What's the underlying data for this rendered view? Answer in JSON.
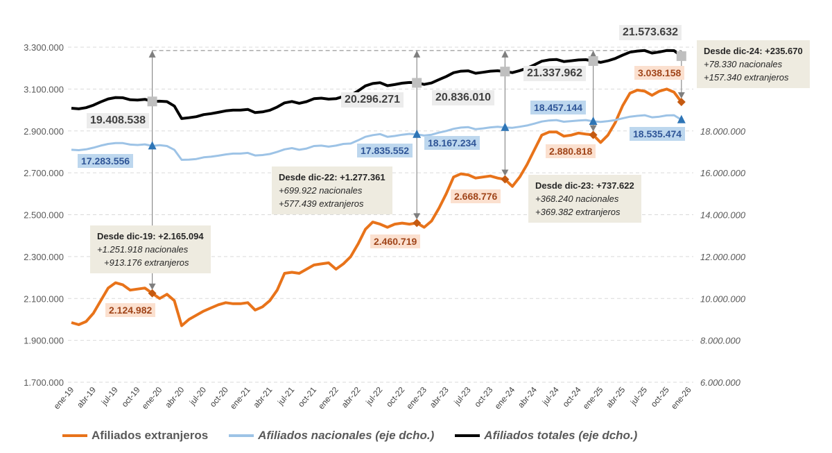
{
  "chart_data": {
    "type": "line",
    "x_tick_labels": [
      "ene-19",
      "abr-19",
      "jul-19",
      "oct-19",
      "ene-20",
      "abr-20",
      "jul-20",
      "oct-20",
      "ene-21",
      "abr-21",
      "jul-21",
      "oct-21",
      "ene-22",
      "abr-22",
      "jul-22",
      "oct-22",
      "ene-23",
      "abr-23",
      "jul-23",
      "oct-23",
      "ene-24",
      "abr-24",
      "jul-24",
      "oct-24",
      "ene-25",
      "abr-25",
      "jul-25",
      "oct-25",
      "ene-26"
    ],
    "left_axis": {
      "ylim": [
        1700000,
        3300000
      ],
      "ticks": [
        "1.700.000",
        "1.900.000",
        "2.100.000",
        "2.300.000",
        "2.500.000",
        "2.700.000",
        "2.900.000",
        "3.100.000",
        "3.300.000"
      ]
    },
    "right_axis": {
      "ylim": [
        6000000,
        22000000
      ],
      "ticks": [
        "6.000.000",
        "8.000.000",
        "10.000.000",
        "12.000.000",
        "14.000.000",
        "16.000.000",
        "18.000.000"
      ]
    },
    "grid": true,
    "legend_position": "bottom",
    "series": [
      {
        "name": "Afiliados extranjeros",
        "axis": "left",
        "color": "#E8731A",
        "values": [
          1985000,
          1975000,
          1990000,
          2030000,
          2090000,
          2150000,
          2175000,
          2165000,
          2140000,
          2145000,
          2150000,
          2124982,
          2100000,
          2120000,
          2090000,
          1970000,
          2000000,
          2020000,
          2040000,
          2055000,
          2070000,
          2080000,
          2075000,
          2075000,
          2080000,
          2045000,
          2060000,
          2090000,
          2140000,
          2220000,
          2225000,
          2220000,
          2240000,
          2260000,
          2265000,
          2270000,
          2240000,
          2265000,
          2300000,
          2360000,
          2430000,
          2465000,
          2455000,
          2440000,
          2455000,
          2460000,
          2455000,
          2460719,
          2440000,
          2470000,
          2530000,
          2600000,
          2680000,
          2695000,
          2690000,
          2675000,
          2680000,
          2685000,
          2675000,
          2668776,
          2635000,
          2680000,
          2740000,
          2810000,
          2880000,
          2895000,
          2895000,
          2875000,
          2880000,
          2890000,
          2885000,
          2880818,
          2845000,
          2880000,
          2940000,
          3020000,
          3080000,
          3095000,
          3090000,
          3070000,
          3090000,
          3100000,
          3085000,
          3038158
        ]
      },
      {
        "name": "Afiliados nacionales (eje dcho.)",
        "axis": "right",
        "color": "#9DC3E6",
        "values": [
          17100000,
          17080000,
          17120000,
          17200000,
          17300000,
          17380000,
          17420000,
          17420000,
          17350000,
          17330000,
          17360000,
          17283556,
          17320000,
          17280000,
          17100000,
          16620000,
          16630000,
          16660000,
          16740000,
          16770000,
          16820000,
          16880000,
          16920000,
          16920000,
          16950000,
          16830000,
          16850000,
          16900000,
          17000000,
          17120000,
          17180000,
          17100000,
          17160000,
          17280000,
          17300000,
          17250000,
          17300000,
          17380000,
          17400000,
          17550000,
          17720000,
          17800000,
          17850000,
          17720000,
          17760000,
          17820000,
          17860000,
          17835552,
          17780000,
          17820000,
          17920000,
          18000000,
          18100000,
          18160000,
          18180000,
          18080000,
          18120000,
          18170000,
          18200000,
          18167234,
          18150000,
          18200000,
          18260000,
          18350000,
          18450000,
          18500000,
          18520000,
          18440000,
          18470000,
          18500000,
          18520000,
          18457144,
          18430000,
          18470000,
          18520000,
          18600000,
          18680000,
          18720000,
          18750000,
          18650000,
          18680000,
          18740000,
          18750000,
          18535474
        ]
      },
      {
        "name": "Afiliados totales (eje dcho.)",
        "axis": "right",
        "color": "#000000",
        "values": [
          19085000,
          19055000,
          19110000,
          19230000,
          19390000,
          19530000,
          19595000,
          19585000,
          19490000,
          19475000,
          19510000,
          19408538,
          19420000,
          19400000,
          19190000,
          18590000,
          18630000,
          18680000,
          18780000,
          18825000,
          18890000,
          18960000,
          18995000,
          18995000,
          19030000,
          18875000,
          18910000,
          18990000,
          19140000,
          19340000,
          19405000,
          19320000,
          19400000,
          19540000,
          19565000,
          19520000,
          19540000,
          19645000,
          19700000,
          19910000,
          20150000,
          20265000,
          20305000,
          20160000,
          20215000,
          20280000,
          20315000,
          20296271,
          20220000,
          20290000,
          20450000,
          20600000,
          20780000,
          20855000,
          20870000,
          20755000,
          20800000,
          20855000,
          20875000,
          20836010,
          20785000,
          20880000,
          21000000,
          21160000,
          21330000,
          21395000,
          21415000,
          21315000,
          21350000,
          21390000,
          21405000,
          21337962,
          21275000,
          21350000,
          21460000,
          21620000,
          21760000,
          21815000,
          21840000,
          21720000,
          21770000,
          21840000,
          21835000,
          21573632
        ]
      }
    ],
    "data_labels": {
      "totales": [
        "19.408.538",
        "20.296.271",
        "20.836.010",
        "21.337.962",
        "21.573.632"
      ],
      "nacionales": [
        "17.283.556",
        "17.835.552",
        "18.167.234",
        "18.457.144",
        "18.535.474"
      ],
      "extranjeros": [
        "2.124.982",
        "2.460.719",
        "2.668.776",
        "2.880.818",
        "3.038.158"
      ]
    },
    "annotations": [
      {
        "title": "Desde dic-19: +2.165.094",
        "nac": "+1.251.918 nacionales",
        "ext": "+913.176 extranjeros"
      },
      {
        "title": "Desde dic-22: +1.277.361",
        "nac": "+699.922 nacionales",
        "ext": "+577.439 extranjeros"
      },
      {
        "title": "Desde dic-23: +737.622",
        "nac": "+368.240 nacionales",
        "ext": "+369.382 extranjeros"
      },
      {
        "title": "Desde dic-24: +235.670",
        "nac": "+78.330 nacionales",
        "ext": "+157.340 extranjeros"
      }
    ]
  }
}
